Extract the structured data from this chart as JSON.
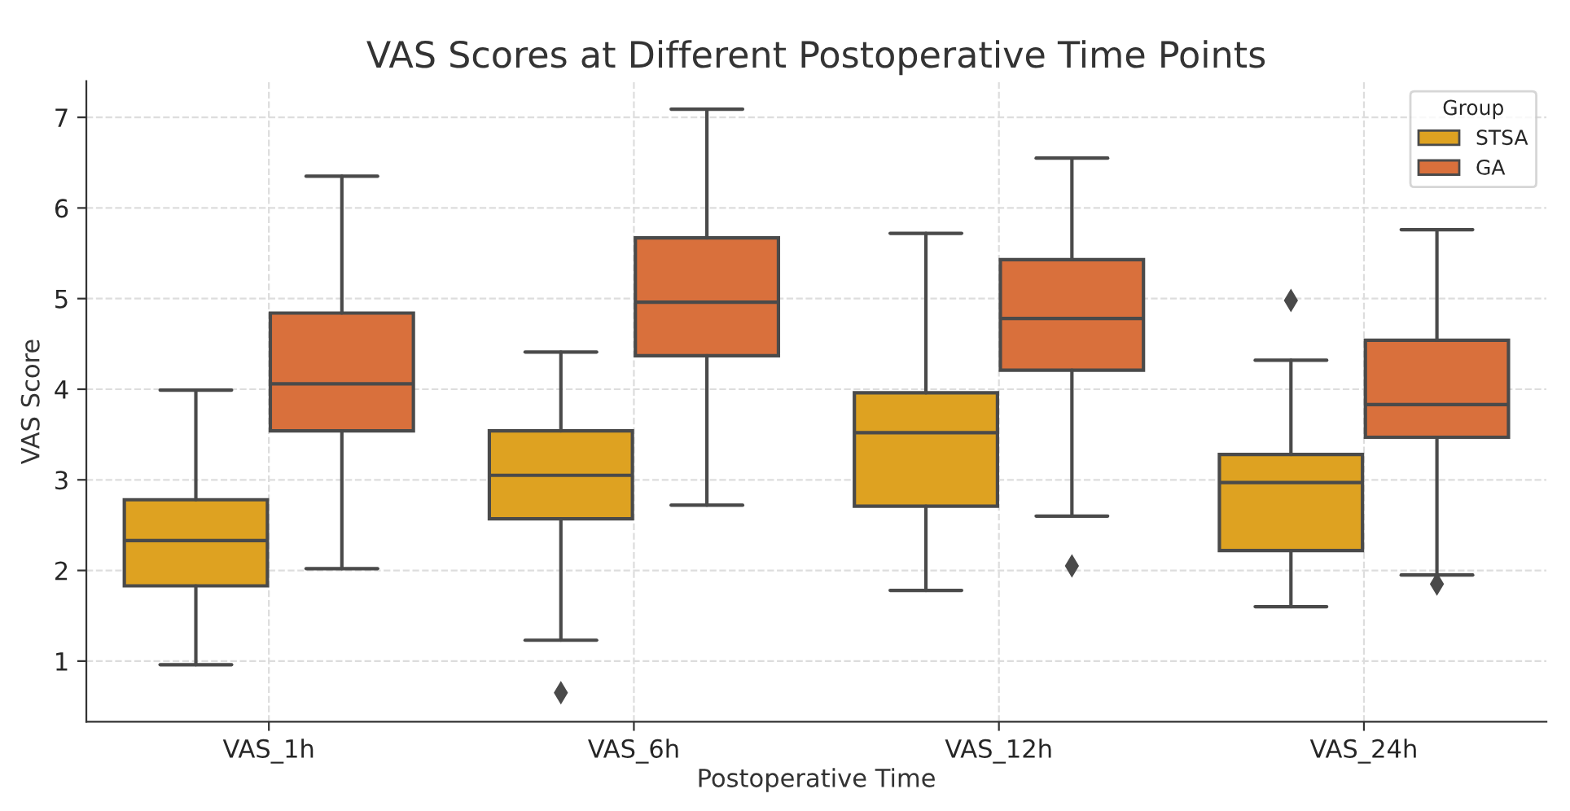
{
  "chart_data": {
    "type": "box",
    "title": "VAS Scores at Different Postoperative Time Points",
    "xlabel": "Postoperative Time",
    "ylabel": "VAS Score",
    "legend_title": "Group",
    "categories": [
      "VAS_1h",
      "VAS_6h",
      "VAS_12h",
      "VAS_24h"
    ],
    "ylim": [
      0.33,
      7.4
    ],
    "yticks": [
      1,
      2,
      3,
      4,
      5,
      6,
      7
    ],
    "grid": true,
    "legend": "top right",
    "marker": "diamond",
    "series": [
      {
        "name": "STSA",
        "color": "#dea221",
        "boxes": [
          {
            "low": 0.96,
            "q1": 1.83,
            "median": 2.33,
            "q3": 2.78,
            "high": 3.99
          },
          {
            "low": 1.23,
            "q1": 2.57,
            "median": 3.05,
            "q3": 3.54,
            "high": 4.41,
            "outliers": [
              0.65
            ]
          },
          {
            "low": 1.78,
            "q1": 2.71,
            "median": 3.52,
            "q3": 3.96,
            "high": 5.72
          },
          {
            "low": 1.6,
            "q1": 2.22,
            "median": 2.97,
            "q3": 3.28,
            "high": 4.32,
            "outliers": [
              4.98
            ]
          }
        ]
      },
      {
        "name": "GA",
        "color": "#d9703c",
        "boxes": [
          {
            "low": 2.02,
            "q1": 3.54,
            "median": 4.06,
            "q3": 4.84,
            "high": 6.35
          },
          {
            "low": 2.72,
            "q1": 4.37,
            "median": 4.96,
            "q3": 5.67,
            "high": 7.09
          },
          {
            "low": 2.6,
            "q1": 4.21,
            "median": 4.78,
            "q3": 5.43,
            "high": 6.55,
            "outliers": [
              2.05
            ]
          },
          {
            "low": 1.95,
            "q1": 3.47,
            "median": 3.83,
            "q3": 4.54,
            "high": 5.76,
            "outliers": [
              1.85
            ]
          }
        ]
      }
    ]
  }
}
